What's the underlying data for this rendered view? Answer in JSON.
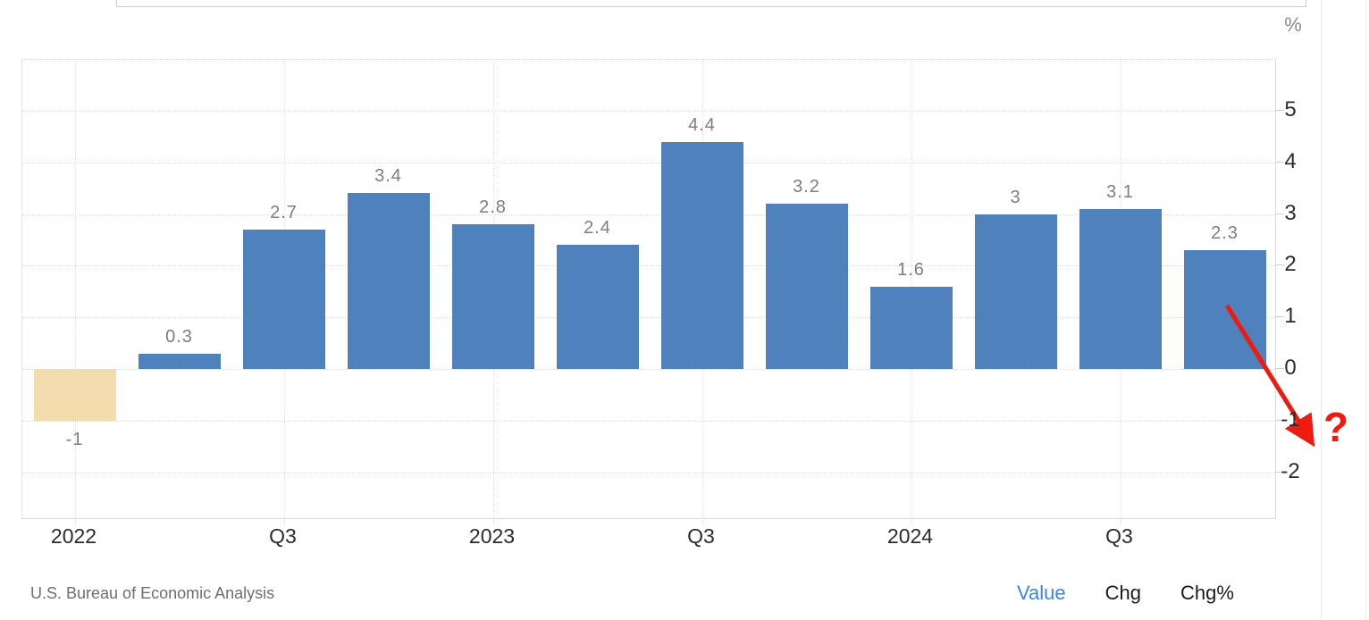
{
  "y_axis": {
    "unit": "%",
    "ticks": [
      "5",
      "4",
      "3",
      "2",
      "1",
      "0",
      "-1",
      "-2"
    ],
    "tick_values": [
      5,
      4,
      3,
      2,
      1,
      0,
      -1,
      -2
    ]
  },
  "chart_data": {
    "type": "bar",
    "values": [
      -1,
      0.3,
      2.7,
      3.4,
      2.8,
      2.4,
      4.4,
      3.2,
      1.6,
      3,
      3.1,
      2.3
    ],
    "bar_labels": [
      "-1",
      "0.3",
      "2.7",
      "3.4",
      "2.8",
      "2.4",
      "4.4",
      "3.2",
      "1.6",
      "3",
      "3.1",
      "2.3"
    ],
    "x_tick_labels": [
      {
        "label": "2022",
        "bar_index": 0
      },
      {
        "label": "Q3",
        "bar_index": 2
      },
      {
        "label": "2023",
        "bar_index": 4
      },
      {
        "label": "Q3",
        "bar_index": 6
      },
      {
        "label": "2024",
        "bar_index": 8
      },
      {
        "label": "Q3",
        "bar_index": 10
      }
    ],
    "ylabel": "%",
    "ylim": [
      -2.9,
      6
    ],
    "grid": true,
    "legend_position": "none",
    "bar_color": "#4f82bd",
    "negative_bar_color": "#f3ddae",
    "source": "U.S. Bureau of Economic Analysis"
  },
  "footer": {
    "source": "U.S. Bureau of Economic Analysis",
    "views": {
      "value": "Value",
      "chg": "Chg",
      "chgpct": "Chg%"
    }
  },
  "annotation": {
    "question_mark": "?",
    "arrow_color": "#ed1b10"
  }
}
